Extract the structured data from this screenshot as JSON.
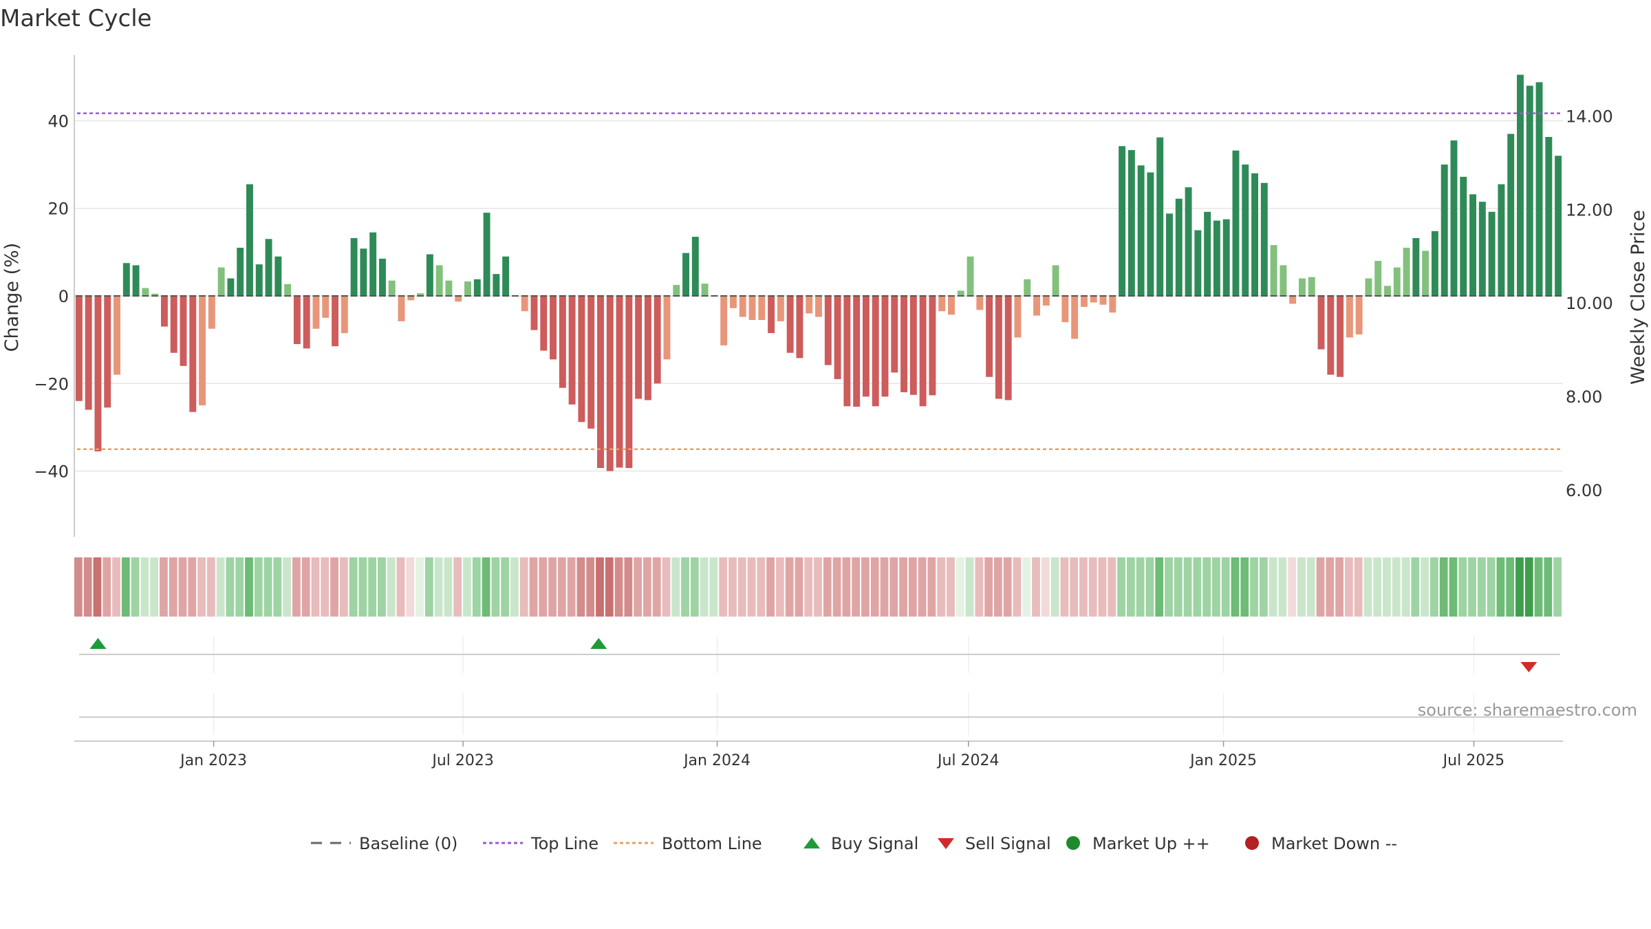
{
  "chart_data": {
    "type": "bar",
    "title": "Market Cycle",
    "ylabel": "Change (%)",
    "y2label": "Weekly Close Price",
    "ylim": [
      -55,
      55
    ],
    "y2lim": [
      5.0,
      15.3
    ],
    "yticks": [
      -40,
      -20,
      0,
      20,
      40
    ],
    "y2ticks": [
      "6.00",
      "8.00",
      "10.00",
      "12.00",
      "14.00"
    ],
    "y2tick_values": [
      6,
      8,
      10,
      12,
      14
    ],
    "top_line": 41.7,
    "bottom_line": -35,
    "baseline": 0,
    "xtick_labels": [
      "Jan 2023",
      "Jul 2023",
      "Jan 2024",
      "Jul 2024",
      "Jan 2025",
      "Jul 2025"
    ],
    "xtick_bar_positions": [
      14.7,
      41,
      67.8,
      94.3,
      121.2,
      147.6
    ],
    "grid": true,
    "legend_position": "bottom",
    "source": "source: sharemaestro.com",
    "values": [
      -24,
      -26,
      -35.5,
      -25.5,
      -18,
      7.5,
      7,
      1.8,
      0.5,
      -7,
      -13,
      -16,
      -26.5,
      -25,
      -7.5,
      6.5,
      4,
      11,
      25.5,
      7.2,
      13,
      9,
      2.7,
      -11,
      -12,
      -7.5,
      -5,
      -11.5,
      -8.5,
      13.2,
      10.8,
      14.5,
      8.5,
      3.5,
      -5.8,
      -1,
      0.6,
      9.5,
      7,
      3.5,
      -1.3,
      3.3,
      3.8,
      19,
      5,
      9,
      0,
      -3.5,
      -7.8,
      -12.5,
      -14.5,
      -21,
      -24.8,
      -28.8,
      -30.3,
      -39.3,
      -40,
      -39.2,
      -39.3,
      -23.5,
      -23.8,
      -20,
      -14.5,
      2.5,
      9.8,
      13.5,
      2.8,
      0,
      -11.3,
      -2.8,
      -4.8,
      -5.5,
      -5.5,
      -8.5,
      -5.8,
      -13,
      -14.2,
      -4,
      -4.8,
      -15.8,
      -19,
      -25.2,
      -25.3,
      -23,
      -25.2,
      -23,
      -17.5,
      -22,
      -22.6,
      -25.2,
      -22.7,
      -3.5,
      -4.3,
      1.2,
      9,
      -3.2,
      -18.5,
      -23.5,
      -23.8,
      -9.5,
      3.8,
      -4.5,
      -2.2,
      7,
      -6,
      -9.8,
      -2.5,
      -1.5,
      -2,
      -3.8,
      34.2,
      33.3,
      29.8,
      28.2,
      36.2,
      18.8,
      22.2,
      24.8,
      15,
      19.2,
      17.2,
      17.5,
      33.2,
      30,
      28,
      25.8,
      11.6,
      7,
      -1.8,
      4,
      4.3,
      -12.2,
      -18,
      -18.5,
      -9.5,
      -8.8,
      4,
      8,
      2.3,
      6.5,
      11,
      13.2,
      10.3,
      14.8,
      30,
      35.5,
      27.2,
      23.2,
      21.5,
      19.2,
      25.5,
      37,
      50.5,
      48,
      48.8,
      36.3,
      32
    ],
    "intensity": [
      3,
      3,
      4,
      2,
      1,
      3,
      2,
      1,
      1,
      2,
      2,
      2,
      2,
      1,
      1,
      1,
      2,
      2,
      3,
      2,
      2,
      2,
      1,
      2,
      2,
      1,
      1,
      2,
      1,
      2,
      2,
      2,
      2,
      1,
      1,
      0,
      0,
      2,
      1,
      1,
      1,
      1,
      2,
      3,
      2,
      2,
      1,
      1,
      2,
      2,
      2,
      2,
      2,
      3,
      3,
      4,
      4,
      3,
      3,
      2,
      2,
      2,
      1,
      1,
      2,
      2,
      1,
      1,
      1,
      1,
      1,
      1,
      1,
      2,
      1,
      2,
      2,
      1,
      1,
      2,
      2,
      2,
      2,
      2,
      2,
      2,
      2,
      2,
      2,
      2,
      2,
      1,
      1,
      0,
      1,
      1,
      2,
      2,
      2,
      1,
      0,
      1,
      0,
      1,
      1,
      1,
      1,
      1,
      1,
      1,
      2,
      2,
      2,
      2,
      3,
      2,
      2,
      2,
      2,
      2,
      2,
      2,
      3,
      3,
      2,
      2,
      1,
      1,
      0,
      1,
      1,
      2,
      2,
      2,
      1,
      1,
      1,
      1,
      1,
      1,
      1,
      2,
      1,
      2,
      3,
      3,
      2,
      2,
      2,
      2,
      3,
      3,
      4,
      4,
      3,
      3,
      2
    ],
    "buy_signals": [
      2.5,
      55.3
    ],
    "sell_signals": [
      153.4
    ],
    "legend": [
      {
        "label": "Baseline (0)",
        "kind": "dash",
        "color": "#666666"
      },
      {
        "label": "Top Line",
        "kind": "dot",
        "color": "#9b59d0"
      },
      {
        "label": "Bottom Line",
        "kind": "dot",
        "color": "#e8a060"
      },
      {
        "label": "Buy Signal",
        "kind": "tri-up",
        "color": "#1f9a3a"
      },
      {
        "label": "Sell Signal",
        "kind": "tri-down",
        "color": "#d22b2b"
      },
      {
        "label": "Market Up ++",
        "kind": "circle",
        "color": "#1e8a2e"
      },
      {
        "label": "Market Down --",
        "kind": "circle",
        "color": "#b22222"
      }
    ],
    "colors": {
      "up_strong": "#2e8b57",
      "up_light": "#82c17c",
      "down_strong": "#cd5c5c",
      "down_light": "#e8967a",
      "top_line": "#9b59d0",
      "bottom_line": "#e8a060",
      "buy": "#1f9a3a",
      "sell": "#d22b2b",
      "grid": "#e6e6e6",
      "axis": "#cccccc"
    }
  }
}
